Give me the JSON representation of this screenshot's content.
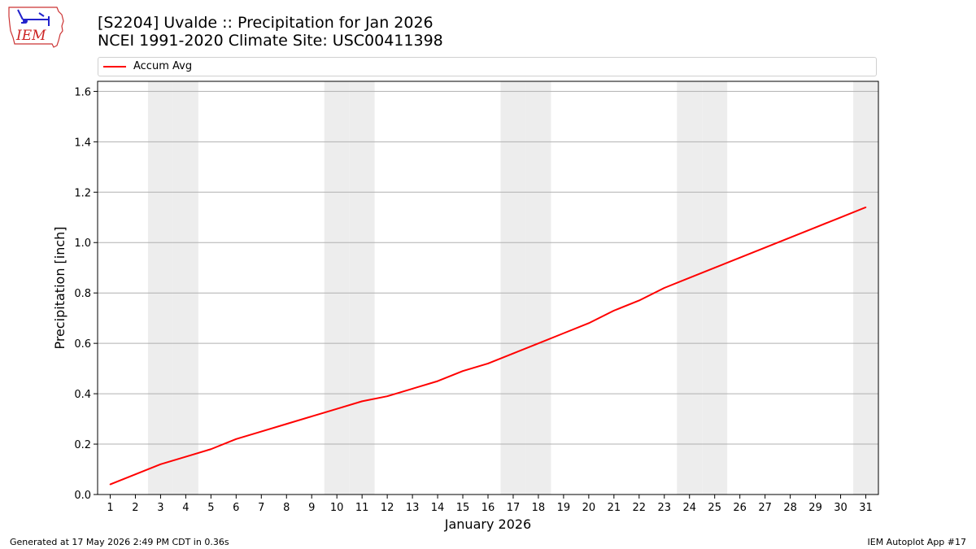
{
  "header": {
    "logo_text": "IEM",
    "title_line1": "[S2204] Uvalde :: Precipitation for Jan 2026",
    "title_line2": "NCEI 1991-2020 Climate Site: USC00411398"
  },
  "footer": {
    "left": "Generated at 17 May 2026 2:49 PM CDT in 0.36s",
    "right": "IEM Autoplot App #17"
  },
  "colors": {
    "line": "#ff0000",
    "weekend_band": "#ededed",
    "grid": "#b0b0b0"
  },
  "chart_data": {
    "type": "line",
    "title": "[S2204] Uvalde :: Precipitation for Jan 2026",
    "subtitle": "NCEI 1991-2020 Climate Site: USC00411398",
    "xlabel": "January 2026",
    "ylabel": "Precipitation [inch]",
    "x": [
      1,
      2,
      3,
      4,
      5,
      6,
      7,
      8,
      9,
      10,
      11,
      12,
      13,
      14,
      15,
      16,
      17,
      18,
      19,
      20,
      21,
      22,
      23,
      24,
      25,
      26,
      27,
      28,
      29,
      30,
      31
    ],
    "xlim": [
      0.5,
      31.5
    ],
    "ylim": [
      0,
      1.64
    ],
    "yticks": [
      0.0,
      0.2,
      0.4,
      0.6,
      0.8,
      1.0,
      1.2,
      1.4,
      1.6
    ],
    "ytick_labels": [
      "0.0",
      "0.2",
      "0.4",
      "0.6",
      "0.8",
      "1.0",
      "1.2",
      "1.4",
      "1.6"
    ],
    "xtick_labels": [
      "1",
      "2",
      "3",
      "4",
      "5",
      "6",
      "7",
      "8",
      "9",
      "10",
      "11",
      "12",
      "13",
      "14",
      "15",
      "16",
      "17",
      "18",
      "19",
      "20",
      "21",
      "22",
      "23",
      "24",
      "25",
      "26",
      "27",
      "28",
      "29",
      "30",
      "31"
    ],
    "grid": "horizontal",
    "legend_position": "top",
    "weekend_days": [
      3,
      4,
      10,
      11,
      17,
      18,
      24,
      25,
      31
    ],
    "series": [
      {
        "name": "Accum Avg",
        "values": [
          0.04,
          0.08,
          0.12,
          0.15,
          0.18,
          0.22,
          0.25,
          0.28,
          0.31,
          0.34,
          0.37,
          0.39,
          0.42,
          0.45,
          0.49,
          0.52,
          0.56,
          0.6,
          0.64,
          0.68,
          0.73,
          0.77,
          0.82,
          0.86,
          0.9,
          0.94,
          0.98,
          1.02,
          1.06,
          1.1,
          1.14
        ]
      }
    ]
  }
}
